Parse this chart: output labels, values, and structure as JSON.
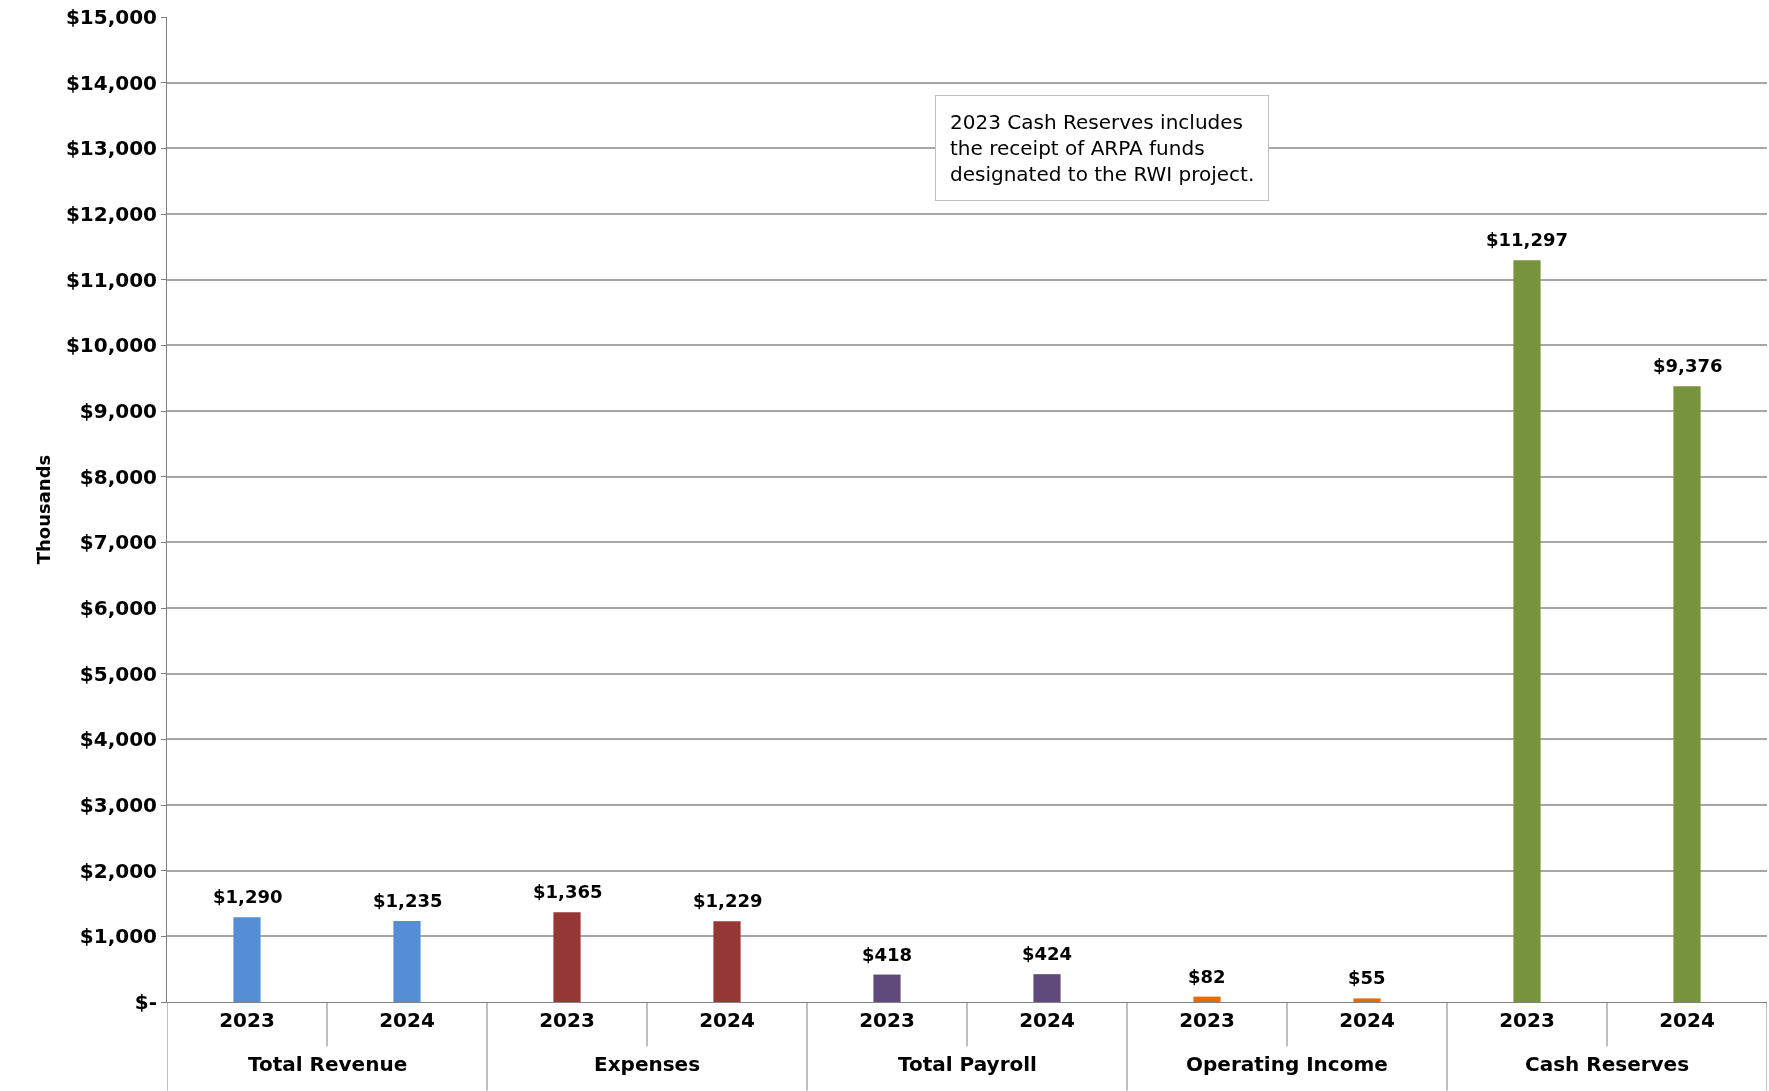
{
  "chart_data": {
    "type": "bar",
    "ylabel": "Thousands",
    "categories": [
      "2023",
      "2024",
      "2023",
      "2024",
      "2023",
      "2024",
      "2023",
      "2024",
      "2023",
      "2024"
    ],
    "values": [
      1290,
      1235,
      1365,
      1229,
      418,
      424,
      82,
      55,
      11297,
      9376
    ],
    "colors": [
      "#558ed5",
      "#558ed5",
      "#953735",
      "#953735",
      "#604a7b",
      "#604a7b",
      "#e46c0a",
      "#e46c0a",
      "#77933c",
      "#77933c"
    ],
    "value_labels": [
      "$1,290",
      "$1,235",
      "$1,365",
      "$1,229",
      "$418",
      "$424",
      "$82",
      "$55",
      "$11,297",
      "$9,376"
    ],
    "ylim": [
      0,
      15000
    ],
    "yticks": [
      {
        "value": 0,
        "label": "$-"
      },
      {
        "value": 1000,
        "label": "$1,000"
      },
      {
        "value": 2000,
        "label": "$2,000"
      },
      {
        "value": 3000,
        "label": "$3,000"
      },
      {
        "value": 4000,
        "label": "$4,000"
      },
      {
        "value": 5000,
        "label": "$5,000"
      },
      {
        "value": 6000,
        "label": "$6,000"
      },
      {
        "value": 7000,
        "label": "$7,000"
      },
      {
        "value": 8000,
        "label": "$8,000"
      },
      {
        "value": 9000,
        "label": "$9,000"
      },
      {
        "value": 10000,
        "label": "$10,000"
      },
      {
        "value": 11000,
        "label": "$11,000"
      },
      {
        "value": 12000,
        "label": "$12,000"
      },
      {
        "value": 13000,
        "label": "$13,000"
      },
      {
        "value": 14000,
        "label": "$14,000"
      },
      {
        "value": 15000,
        "label": "$15,000"
      }
    ],
    "grid": "y",
    "annotations": [
      "Total Revenue",
      "Expenses",
      "Total Payroll",
      "Operating Income",
      "Cash Reserves",
      "2023 Cash Reserves includes\nthe receipt of ARPA funds\ndesignated to the RWI project."
    ]
  }
}
